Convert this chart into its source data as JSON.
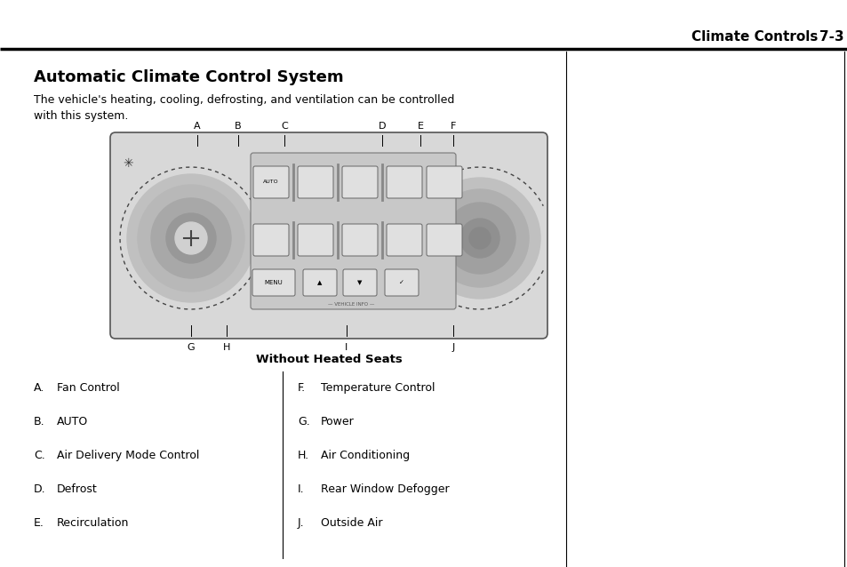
{
  "background_color": "#ffffff",
  "page_width": 9.54,
  "page_height": 6.38,
  "header_text": "Climate Controls",
  "header_page": "7-3",
  "title": "Automatic Climate Control System",
  "body_text": "The vehicle's heating, cooling, defrosting, and ventilation can be controlled\nwith this system.",
  "caption": "Without Heated Seats",
  "left_items": [
    [
      "A.",
      "Fan Control"
    ],
    [
      "B.",
      "AUTO"
    ],
    [
      "C.",
      "Air Delivery Mode Control"
    ],
    [
      "D.",
      "Defrost"
    ],
    [
      "E.",
      "Recirculation"
    ]
  ],
  "right_items": [
    [
      "F.",
      "Temperature Control"
    ],
    [
      "G.",
      "Power"
    ],
    [
      "H.",
      "Air Conditioning"
    ],
    [
      "I.",
      "Rear Window Defogger"
    ],
    [
      "J.",
      "Outside Air"
    ]
  ]
}
